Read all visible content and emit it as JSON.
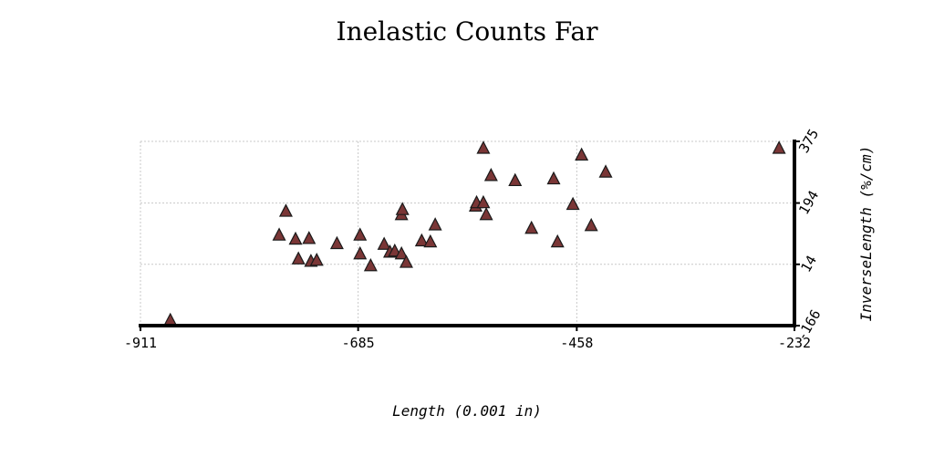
{
  "chart_data": {
    "type": "scatter",
    "title": "Inelastic Counts Far",
    "xlabel": "Length (0.001 in)",
    "ylabel": "InverseLength (%/cm)",
    "xlim": [
      -911,
      -232
    ],
    "ylim": [
      -166,
      375
    ],
    "x_ticks": [
      "-911",
      "-685",
      "-458",
      "-232"
    ],
    "y_ticks": [
      "-166",
      "14",
      "194",
      "375"
    ],
    "x_tick_values": [
      -911,
      -685,
      -458,
      -232
    ],
    "y_tick_values": [
      -166,
      14,
      194,
      375
    ],
    "grid": true,
    "marker": "triangle",
    "marker_color": "#7a3636",
    "points": [
      {
        "x": -880,
        "y": -150
      },
      {
        "x": -767,
        "y": 100
      },
      {
        "x": -760,
        "y": 170
      },
      {
        "x": -750,
        "y": 88
      },
      {
        "x": -747,
        "y": 30
      },
      {
        "x": -736,
        "y": 90
      },
      {
        "x": -734,
        "y": 23
      },
      {
        "x": -728,
        "y": 26
      },
      {
        "x": -707,
        "y": 75
      },
      {
        "x": -683,
        "y": 100
      },
      {
        "x": -683,
        "y": 45
      },
      {
        "x": -672,
        "y": 10
      },
      {
        "x": -658,
        "y": 73
      },
      {
        "x": -652,
        "y": 50
      },
      {
        "x": -647,
        "y": 53
      },
      {
        "x": -640,
        "y": 45
      },
      {
        "x": -640,
        "y": 160
      },
      {
        "x": -639,
        "y": 175
      },
      {
        "x": -635,
        "y": 20
      },
      {
        "x": -619,
        "y": 83
      },
      {
        "x": -610,
        "y": 80
      },
      {
        "x": -605,
        "y": 130
      },
      {
        "x": -563,
        "y": 185
      },
      {
        "x": -562,
        "y": 195
      },
      {
        "x": -555,
        "y": 195
      },
      {
        "x": -555,
        "y": 355
      },
      {
        "x": -552,
        "y": 160
      },
      {
        "x": -547,
        "y": 275
      },
      {
        "x": -522,
        "y": 260
      },
      {
        "x": -505,
        "y": 120
      },
      {
        "x": -482,
        "y": 265
      },
      {
        "x": -478,
        "y": 80
      },
      {
        "x": -462,
        "y": 190
      },
      {
        "x": -453,
        "y": 335
      },
      {
        "x": -443,
        "y": 128
      },
      {
        "x": -428,
        "y": 285
      },
      {
        "x": -248,
        "y": 355
      }
    ]
  }
}
